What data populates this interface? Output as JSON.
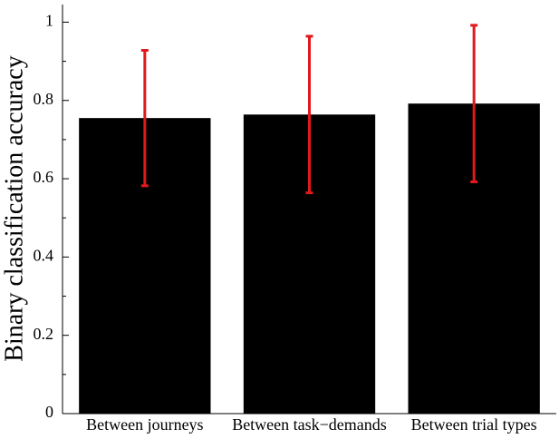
{
  "chart_data": {
    "type": "bar",
    "y_label": "Binary classification accuracy",
    "categories": [
      "Between journeys",
      "Between task−demands",
      "Between trial types"
    ],
    "values": [
      0.755,
      0.764,
      0.792
    ],
    "errors": [
      0.173,
      0.2,
      0.2
    ],
    "color": "#000000",
    "error_color": "#e0191c",
    "ylim": [
      0,
      1.045
    ],
    "yticks": [
      0,
      0.2,
      0.4,
      0.6,
      0.8,
      1
    ],
    "yminorticks": [
      0.1,
      0.3,
      0.5,
      0.7,
      0.9
    ],
    "grid": false
  }
}
